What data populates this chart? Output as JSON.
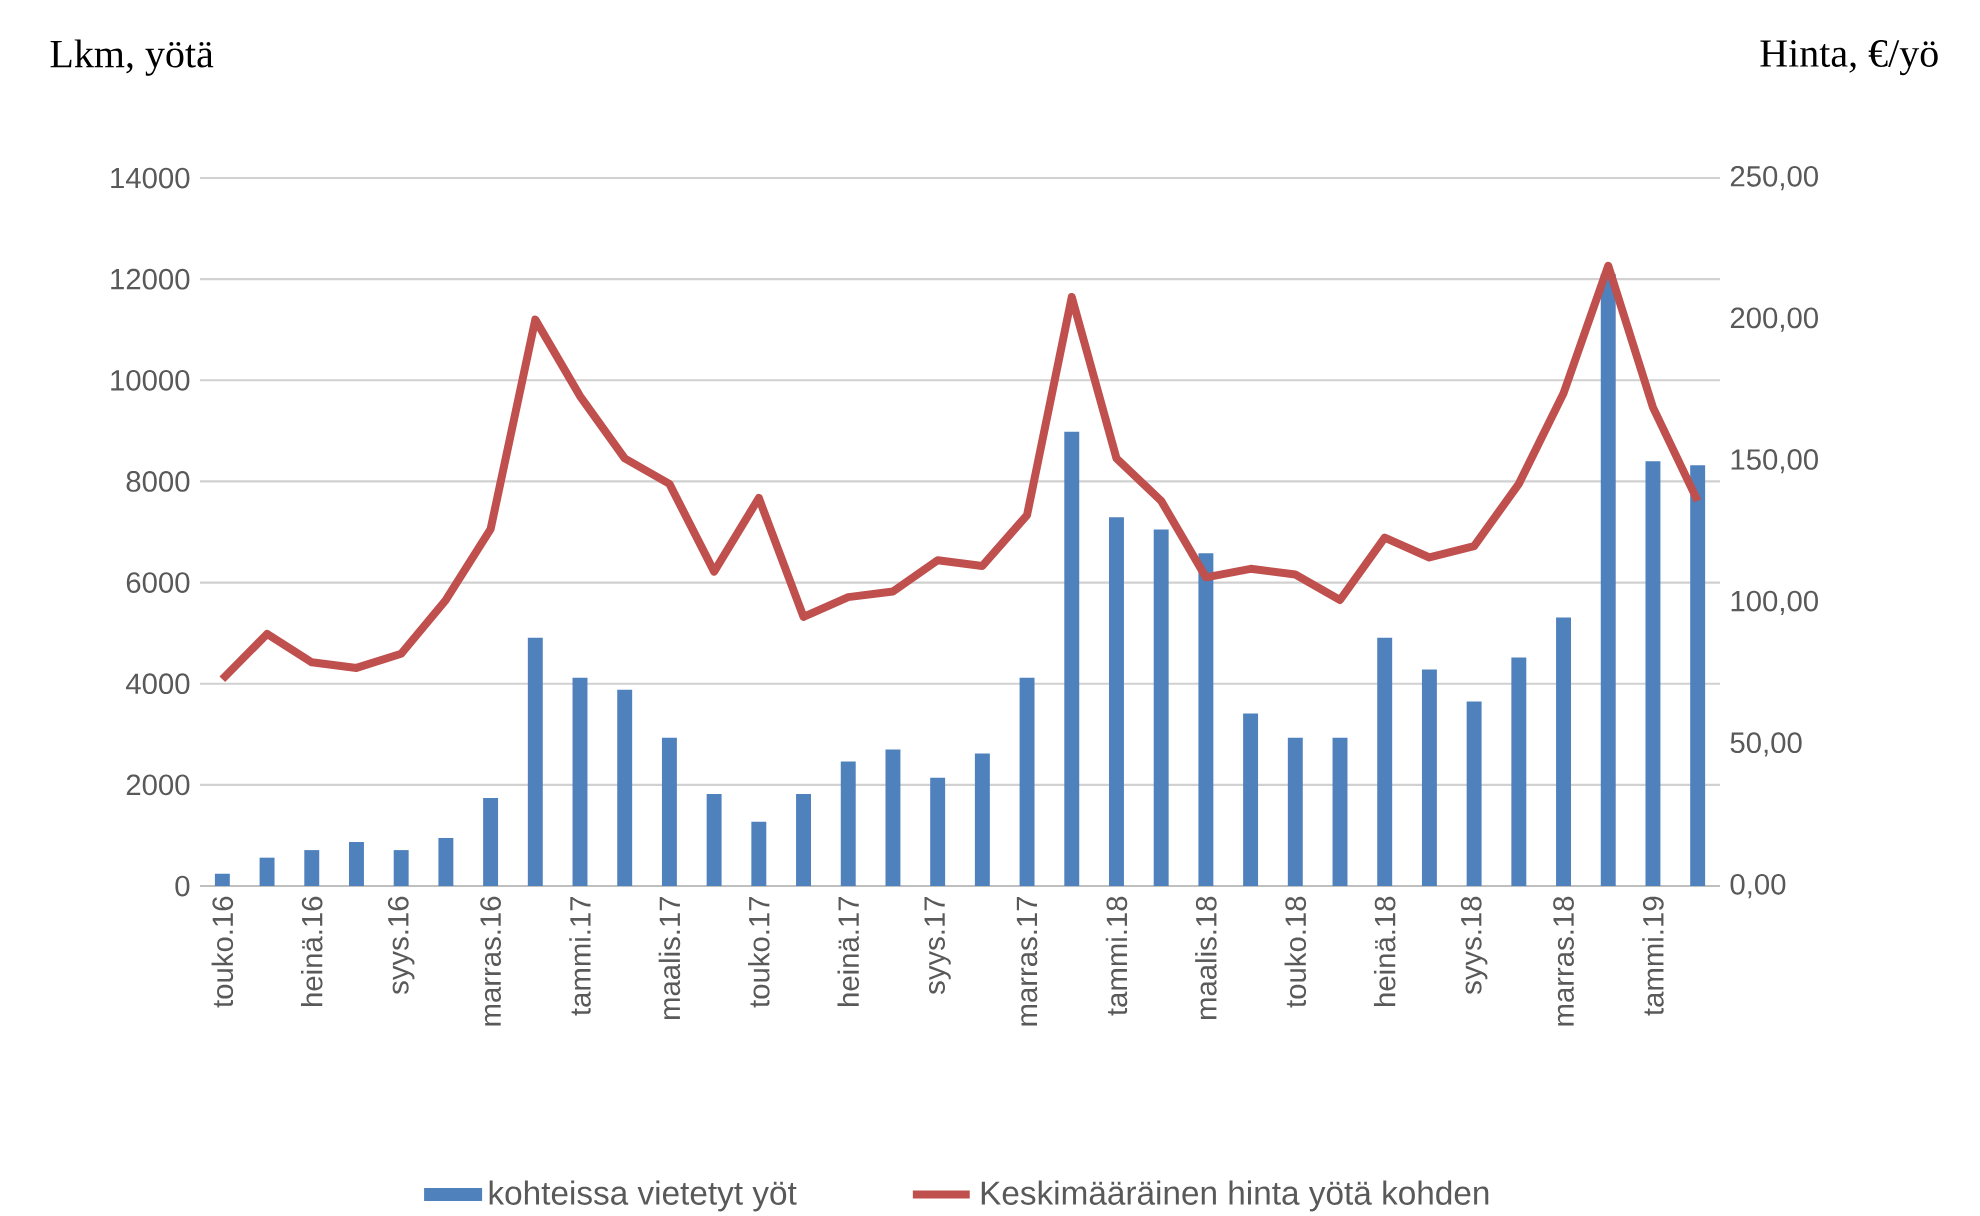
{
  "chart_data": {
    "type": "bar",
    "ylabel": "Lkm, yötä",
    "y2label": "Hinta, €/yö",
    "categories": [
      "touko.16",
      null,
      "heinä.16",
      null,
      "syys.16",
      null,
      "marras.16",
      null,
      "tammi.17",
      null,
      "maalis.17",
      null,
      "touko.17",
      null,
      "heinä.17",
      null,
      "syys.17",
      null,
      "marras.17",
      null,
      "tammi.18",
      null,
      "maalis.18",
      null,
      "touko.18",
      null,
      "heinä.18",
      null,
      "syys.18",
      null,
      "marras.18",
      null,
      "tammi.19",
      null
    ],
    "series": [
      {
        "name": "kohteissa vietetyt yöt",
        "color": "#4f81bd",
        "values": [
          240,
          560,
          710,
          870,
          710,
          950,
          1740,
          4910,
          4120,
          3880,
          2930,
          1820,
          1270,
          1820,
          2460,
          2700,
          2140,
          2620,
          4120,
          8980,
          7290,
          7050,
          6580,
          3410,
          2930,
          2930,
          4910,
          4280,
          3650,
          4520,
          5310,
          12100,
          8400,
          8320
        ]
      },
      {
        "name": "Keskimääräinen hinta yötä kohden",
        "type": "line",
        "axis": "y2",
        "color": "#c0504d",
        "values": [
          73,
          89,
          79,
          77,
          82,
          101,
          126,
          200,
          173,
          151,
          142,
          111,
          137,
          95,
          102,
          104,
          115,
          113,
          131,
          208,
          151,
          136,
          109,
          112,
          110,
          101,
          123,
          116,
          120,
          142,
          174,
          219,
          169,
          136
        ]
      }
    ],
    "ylim": [
      0,
      14000
    ],
    "yticks": [
      0,
      2000,
      4000,
      6000,
      8000,
      10000,
      12000,
      14000
    ],
    "y2lim": [
      0,
      250
    ],
    "y2ticks": [
      {
        "value": 0,
        "label": "0,00"
      },
      {
        "value": 50,
        "label": "50,00"
      },
      {
        "value": 100,
        "label": "100,00"
      },
      {
        "value": 150,
        "label": "150,00"
      },
      {
        "value": 200,
        "label": "200,00"
      },
      {
        "value": 250,
        "label": "250,00"
      }
    ],
    "grid": "y",
    "legend": "bottom"
  }
}
